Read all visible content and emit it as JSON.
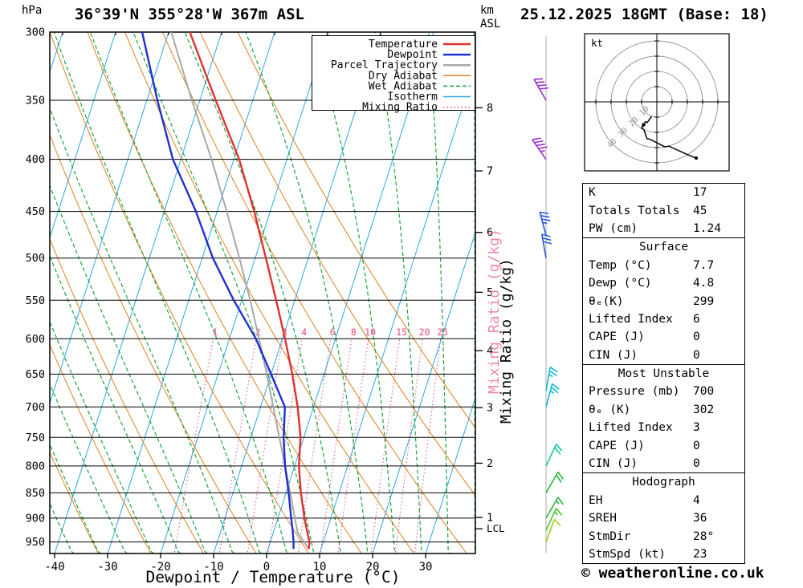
{
  "header": {
    "pressure_unit": "hPa",
    "title": "36°39'N 355°28'W 367m ASL",
    "km": "km",
    "asl": "ASL",
    "datetime": "25.12.2025 18GMT (Base: 18)"
  },
  "legend": [
    {
      "label": "Temperature",
      "color": "#e03030",
      "style": "solid",
      "width": 2.5
    },
    {
      "label": "Dewpoint",
      "color": "#2030d0",
      "style": "solid",
      "width": 2.5
    },
    {
      "label": "Parcel Trajectory",
      "color": "#a8a8a8",
      "style": "solid",
      "width": 2.5
    },
    {
      "label": "Dry Adiabat",
      "color": "#e08020",
      "style": "solid",
      "width": 1.5
    },
    {
      "label": "Wet Adiabat",
      "color": "#18a83c",
      "style": "dashed",
      "width": 1.5
    },
    {
      "label": "Isotherm",
      "color": "#2aa8e0",
      "style": "solid",
      "width": 1.5
    },
    {
      "label": "Mixing Ratio",
      "color": "#e84878",
      "style": "dotted",
      "width": 1.5
    }
  ],
  "chart_data": {
    "type": "line",
    "title": "36°39'N 355°28'W 367m ASL",
    "xlabel": "Dewpoint / Temperature (°C)",
    "ylabel": "hPa",
    "x_range": [
      -40,
      40
    ],
    "pressure_range": [
      300,
      975
    ],
    "pressure_ticks": [
      300,
      350,
      400,
      450,
      500,
      550,
      600,
      650,
      700,
      750,
      800,
      850,
      900,
      950
    ],
    "temp_ticks": [
      -40,
      -30,
      -20,
      -10,
      0,
      10,
      20,
      30
    ],
    "km_ticks": [
      1,
      2,
      3,
      4,
      5,
      6,
      7,
      8
    ],
    "mixing_ratio_label": "Mixing Ratio (g/kg)",
    "mixing_ratio_values": [
      1,
      2,
      3,
      4,
      6,
      8,
      10,
      15,
      20,
      25
    ],
    "lcl_label": "LCL",
    "lcl_pressure": 922,
    "series": [
      {
        "name": "Parcel Trajectory",
        "color": "#a8a8a8",
        "width": 2,
        "points": [
          [
            965,
            7.7
          ],
          [
            930,
            4.6
          ],
          [
            900,
            3.2
          ],
          [
            850,
            0.8
          ],
          [
            800,
            -1.8
          ],
          [
            750,
            -4.6
          ],
          [
            700,
            -7.6
          ],
          [
            650,
            -10.8
          ],
          [
            600,
            -14.4
          ],
          [
            550,
            -18.4
          ],
          [
            500,
            -23.0
          ],
          [
            450,
            -28.2
          ],
          [
            400,
            -34.2
          ],
          [
            350,
            -41.5
          ],
          [
            300,
            -49.5
          ]
        ]
      },
      {
        "name": "Dewpoint",
        "color": "#2030d0",
        "width": 2.4,
        "points": [
          [
            965,
            4.8
          ],
          [
            950,
            4.4
          ],
          [
            925,
            3.5
          ],
          [
            900,
            2.5
          ],
          [
            850,
            0.5
          ],
          [
            800,
            -1.8
          ],
          [
            750,
            -3.8
          ],
          [
            700,
            -5.4
          ],
          [
            650,
            -10.0
          ],
          [
            600,
            -15.0
          ],
          [
            550,
            -21.5
          ],
          [
            500,
            -28.0
          ],
          [
            450,
            -34.0
          ],
          [
            400,
            -41.5
          ],
          [
            350,
            -48.0
          ],
          [
            300,
            -55.0
          ]
        ]
      },
      {
        "name": "Temperature",
        "color": "#e03030",
        "width": 2.4,
        "points": [
          [
            965,
            7.7
          ],
          [
            950,
            7.4
          ],
          [
            925,
            6.2
          ],
          [
            900,
            5.0
          ],
          [
            850,
            2.8
          ],
          [
            800,
            0.8
          ],
          [
            750,
            -0.6
          ],
          [
            700,
            -3.0
          ],
          [
            650,
            -6.0
          ],
          [
            600,
            -9.5
          ],
          [
            550,
            -13.5
          ],
          [
            500,
            -18.0
          ],
          [
            450,
            -23.0
          ],
          [
            400,
            -29.0
          ],
          [
            350,
            -37.0
          ],
          [
            300,
            -46.0
          ]
        ]
      }
    ],
    "background": {
      "isotherm_color": "#2aa8e0",
      "dry_adiabat_color": "#e08020",
      "wet_adiabat_color": "#18a83c",
      "mixing_ratio_color": "#e84878"
    }
  },
  "wind_barbs": [
    {
      "pressure": 350,
      "dir": 330,
      "speed": 40,
      "color": "#9b30d0"
    },
    {
      "pressure": 400,
      "dir": 325,
      "speed": 45,
      "color": "#9b30d0"
    },
    {
      "pressure": 475,
      "dir": 345,
      "speed": 35,
      "color": "#2858e0"
    },
    {
      "pressure": 500,
      "dir": 350,
      "speed": 30,
      "color": "#2858e0"
    },
    {
      "pressure": 675,
      "dir": 10,
      "speed": 25,
      "color": "#10b8d8"
    },
    {
      "pressure": 700,
      "dir": 15,
      "speed": 25,
      "color": "#10b8d8"
    },
    {
      "pressure": 800,
      "dir": 25,
      "speed": 20,
      "color": "#10c8a0"
    },
    {
      "pressure": 850,
      "dir": 30,
      "speed": 20,
      "color": "#28b840"
    },
    {
      "pressure": 900,
      "dir": 30,
      "speed": 15,
      "color": "#28b840"
    },
    {
      "pressure": 925,
      "dir": 25,
      "speed": 15,
      "color": "#48c828"
    },
    {
      "pressure": 950,
      "dir": 20,
      "speed": 10,
      "color": "#a0cc10"
    }
  ],
  "hodograph": {
    "unit_label": "kt",
    "rings": [
      10,
      20,
      30,
      40
    ],
    "trace_uv": [
      [
        -3.4,
        -9.4
      ],
      [
        -6.3,
        -13.6
      ],
      [
        -7.5,
        -13.0
      ],
      [
        -10.0,
        -17.3
      ],
      [
        -8.5,
        -18.1
      ],
      [
        -6.5,
        -24.1
      ],
      [
        -4.3,
        -24.6
      ],
      [
        5.2,
        -29.5
      ],
      [
        7.8,
        -29.0
      ],
      [
        20.0,
        -34.6
      ],
      [
        25.8,
        -36.9
      ]
    ]
  },
  "table": {
    "sections": [
      {
        "title": null,
        "rows": [
          {
            "label": "K",
            "value": "17"
          },
          {
            "label": "Totals Totals",
            "value": "45"
          },
          {
            "label": "PW (cm)",
            "value": "1.24"
          }
        ]
      },
      {
        "title": "Surface",
        "rows": [
          {
            "label": "Temp (°C)",
            "value": "7.7"
          },
          {
            "label": "Dewp (°C)",
            "value": "4.8"
          },
          {
            "label": "θₑ(K)",
            "value": "299"
          },
          {
            "label": "Lifted Index",
            "value": "6"
          },
          {
            "label": "CAPE (J)",
            "value": "0"
          },
          {
            "label": "CIN (J)",
            "value": "0"
          }
        ]
      },
      {
        "title": "Most Unstable",
        "rows": [
          {
            "label": "Pressure (mb)",
            "value": "700"
          },
          {
            "label": "θₑ (K)",
            "value": "302"
          },
          {
            "label": "Lifted Index",
            "value": "3"
          },
          {
            "label": "CAPE (J)",
            "value": "0"
          },
          {
            "label": "CIN (J)",
            "value": "0"
          }
        ]
      },
      {
        "title": "Hodograph",
        "rows": [
          {
            "label": "EH",
            "value": "4"
          },
          {
            "label": "SREH",
            "value": "36"
          },
          {
            "label": "StmDir",
            "value": "28°"
          },
          {
            "label": "StmSpd (kt)",
            "value": "23"
          }
        ]
      }
    ]
  },
  "footer": {
    "copyright": "© weatheronline.co.uk"
  }
}
